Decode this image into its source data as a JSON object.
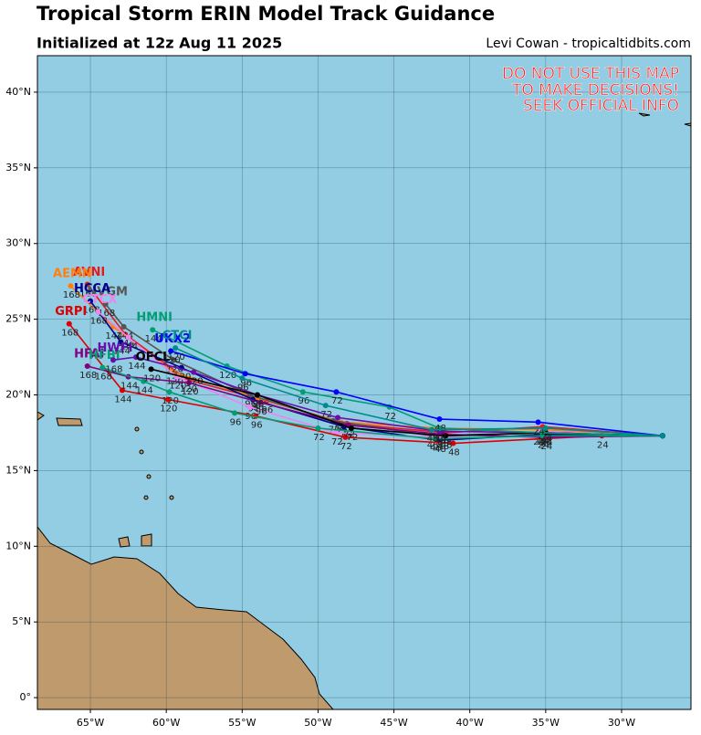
{
  "header": {
    "title": "Tropical Storm ERIN Model Track Guidance",
    "subtitle": "Initialized at 12z Aug 11 2025",
    "credit": "Levi Cowan - tropicaltidbits.com"
  },
  "warning": [
    "DO NOT USE THIS MAP",
    "TO MAKE DECISIONS!",
    "SEEK OFFICIAL INFO"
  ],
  "map": {
    "lonlim": [
      -68.49,
      -25.43
    ],
    "latlim": [
      -0.78,
      42.41
    ],
    "lonticks": [
      {
        "value": -65,
        "label": "65°W"
      },
      {
        "value": -60,
        "label": "60°W"
      },
      {
        "value": -55,
        "label": "55°W"
      },
      {
        "value": -50,
        "label": "50°W"
      },
      {
        "value": -45,
        "label": "45°W"
      },
      {
        "value": -40,
        "label": "40°W"
      },
      {
        "value": -35,
        "label": "35°W"
      },
      {
        "value": -30,
        "label": "30°W"
      }
    ],
    "latticks": [
      {
        "value": 0,
        "label": "0°"
      },
      {
        "value": 5,
        "label": "5°N"
      },
      {
        "value": 10,
        "label": "10°N"
      },
      {
        "value": 15,
        "label": "15°N"
      },
      {
        "value": 20,
        "label": "20°N"
      },
      {
        "value": 25,
        "label": "25°N"
      },
      {
        "value": 30,
        "label": "30°N"
      },
      {
        "value": 35,
        "label": "35°N"
      },
      {
        "value": 40,
        "label": "40°N"
      }
    ],
    "grid": true,
    "hours": [
      0,
      24,
      48,
      72,
      96,
      120,
      144,
      168
    ],
    "tracks": [
      {
        "name": "AVNI",
        "color": "#e41a1c",
        "lon": [
          -27.3,
          -35.2,
          -41.6,
          -48.1,
          -53.4,
          -58.6,
          -62.7,
          -65.2
        ],
        "lat": [
          17.3,
          17.9,
          17.5,
          18.1,
          19.6,
          21.0,
          24.0,
          27.3
        ]
      },
      {
        "name": "AEMN",
        "color": "#ff7f0e",
        "lon": [
          -27.3,
          -35.0,
          -42.0,
          -48.5,
          -54.0,
          -59.5,
          -63.5,
          -66.3
        ],
        "lat": [
          17.3,
          17.7,
          17.8,
          18.2,
          19.8,
          21.5,
          24.5,
          27.2
        ]
      },
      {
        "name": "NVGM",
        "color": "#555555",
        "lon": [
          -27.3,
          -35.5,
          -42.5,
          -49.0,
          -54.5,
          -59.5,
          -62.8,
          -64.0
        ],
        "lat": [
          17.3,
          17.5,
          17.3,
          18.3,
          20.0,
          22.3,
          24.5,
          26.0
        ]
      },
      {
        "name": "HCCA",
        "color": "#00008b",
        "lon": [
          -27.3,
          -35.0,
          -42.0,
          -48.3,
          -54.3,
          -59.0,
          -63.0,
          -65.0
        ],
        "lat": [
          17.3,
          17.4,
          17.0,
          17.9,
          19.7,
          21.8,
          23.5,
          26.2
        ]
      },
      {
        "name": "CTCX",
        "color": "#ee82ee",
        "lon": [
          -27.3,
          -35.3,
          -41.8,
          -48.8,
          -54.5,
          -59.3,
          -62.5,
          -64.5
        ],
        "lat": [
          17.3,
          17.6,
          17.2,
          17.5,
          19.2,
          21.2,
          23.8,
          25.5
        ]
      },
      {
        "name": "GRPI",
        "color": "#dd0000",
        "lon": [
          -27.3,
          -31.3,
          -41.1,
          -48.2,
          -54.1,
          -59.9,
          -62.9,
          -66.4
        ],
        "lat": [
          17.3,
          17.3,
          16.8,
          17.2,
          18.6,
          19.7,
          20.3,
          24.7
        ]
      },
      {
        "name": "HFAI",
        "color": "#800080",
        "lon": [
          -27.3,
          -35.0,
          -41.8,
          -48.0,
          -53.8,
          -58.5,
          -62.5,
          -65.2
        ],
        "lat": [
          17.3,
          17.2,
          17.4,
          18.0,
          19.5,
          20.8,
          21.2,
          21.9
        ]
      },
      {
        "name": "HFBI",
        "color": "#009e73",
        "lon": [
          -27.3,
          -35.2,
          -42.3,
          -50.0,
          -55.5,
          -59.8,
          -61.5,
          -64.2
        ],
        "lat": [
          17.3,
          17.3,
          17.1,
          17.8,
          18.8,
          20.2,
          20.9,
          21.8
        ]
      },
      {
        "name": "HWFI",
        "color": "#6a0dad",
        "lon": [
          -27.3,
          -35.0,
          -42.0,
          -48.7,
          -54.0,
          -58.2,
          -62.0,
          -63.5
        ],
        "lat": [
          17.3,
          17.5,
          17.6,
          18.5,
          20.0,
          21.5,
          22.5,
          22.3
        ]
      },
      {
        "name": "OFCL",
        "color": "#000000",
        "lon": [
          -27.3,
          -35.0,
          -41.6,
          -47.8,
          -54.0,
          -61.0
        ],
        "lat": [
          17.3,
          17.5,
          17.3,
          17.8,
          20.0,
          21.7
        ]
      },
      {
        "name": "HMNI",
        "color": "#009e73",
        "lon": [
          -27.3,
          -35.2,
          -42.0,
          -45.3,
          -51.0,
          -56.0,
          -60.9
        ],
        "lat": [
          17.3,
          17.5,
          17.8,
          19.2,
          20.2,
          21.9,
          24.3
        ]
      },
      {
        "name": "UKX2",
        "color": "#0000ff",
        "lon": [
          -27.3,
          -35.5,
          -42.0,
          -48.8,
          -54.8,
          -59.7
        ],
        "lat": [
          17.3,
          18.2,
          18.4,
          20.2,
          21.4,
          22.9
        ]
      },
      {
        "name": "CTCI",
        "color": "#008b8b",
        "lon": [
          -27.3,
          -35.0,
          -42.5,
          -49.5,
          -55.0,
          -59.4
        ],
        "lat": [
          17.3,
          17.8,
          17.7,
          19.3,
          21.1,
          23.1
        ]
      }
    ]
  }
}
